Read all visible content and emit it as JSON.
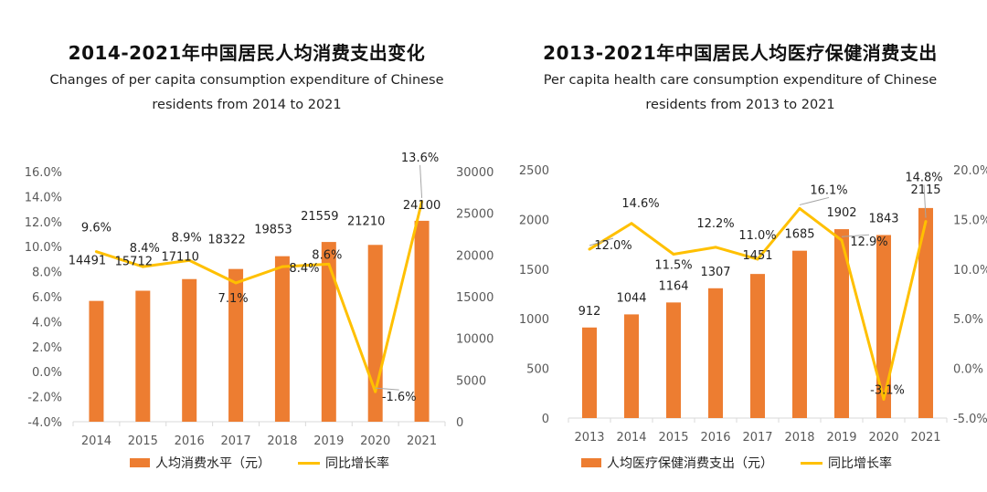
{
  "colors": {
    "bar": "#ED7D31",
    "line": "#FFC000",
    "axis": "#D9D9D9",
    "leader": "#A6A6A6",
    "tick": "#595959"
  },
  "charts": [
    {
      "title": "2014-2021年中国居民人均消费支出变化",
      "subtitle_lines": [
        "Changes of per capita consumption expenditure of Chinese",
        "residents from 2014 to 2021"
      ],
      "legend": {
        "bar": "人均消费水平（元）",
        "line": "同比增长率"
      }
    },
    {
      "title": "2013-2021年中国居民人均医疗保健消费支出",
      "subtitle_lines": [
        "Per capita health care consumption expenditure of Chinese",
        "residents from 2013 to 2021"
      ],
      "legend": {
        "bar": "人均医疗保健消费支出（元）",
        "line": "同比增长率"
      }
    }
  ],
  "chart_data": [
    {
      "type": "bar+line",
      "title": "2014-2021年中国居民人均消费支出变化",
      "categories": [
        "2014",
        "2015",
        "2016",
        "2017",
        "2018",
        "2019",
        "2020",
        "2021"
      ],
      "series": [
        {
          "name": "人均消费水平（元）",
          "type": "bar",
          "axis": "right",
          "values": [
            14491,
            15712,
            17110,
            18322,
            19853,
            21559,
            21210,
            24100
          ],
          "labels": [
            "14491",
            "15712",
            "17110",
            "18322",
            "19853",
            "21559",
            "21210",
            "24100"
          ]
        },
        {
          "name": "同比增长率",
          "type": "line",
          "axis": "left",
          "values": [
            9.6,
            8.4,
            8.9,
            7.1,
            8.4,
            8.6,
            -1.6,
            13.6
          ],
          "labels": [
            "9.6%",
            "8.4%",
            "8.9%",
            "7.1%",
            "8.4%",
            "8.6%",
            "-1.6%",
            "13.6%"
          ]
        }
      ],
      "left_axis": {
        "min": -4,
        "max": 16,
        "step": 2,
        "ticks": [
          "16.0%",
          "14.0%",
          "12.0%",
          "10.0%",
          "8.0%",
          "6.0%",
          "4.0%",
          "2.0%",
          "0.0%",
          "-2.0%",
          "-4.0%"
        ]
      },
      "right_axis": {
        "min": 0,
        "max": 30000,
        "step": 5000,
        "ticks": [
          "30000",
          "25000",
          "20000",
          "15000",
          "10000",
          "5000",
          "0"
        ]
      }
    },
    {
      "type": "bar+line",
      "title": "2013-2021年中国居民人均医疗保健消费支出",
      "categories": [
        "2013",
        "2014",
        "2015",
        "2016",
        "2017",
        "2018",
        "2019",
        "2020",
        "2021"
      ],
      "series": [
        {
          "name": "人均医疗保健消费支出（元）",
          "type": "bar",
          "axis": "left",
          "values": [
            912,
            1044,
            1164,
            1307,
            1451,
            1685,
            1902,
            1843,
            2115
          ],
          "labels": [
            "912",
            "1044",
            "1164",
            "1307",
            "1451",
            "1685",
            "1902",
            "1843",
            "2115"
          ]
        },
        {
          "name": "同比增长率",
          "type": "line",
          "axis": "right",
          "values": [
            12.0,
            14.6,
            11.5,
            12.2,
            11.0,
            16.1,
            12.9,
            -3.1,
            14.8
          ],
          "labels": [
            "12.0%",
            "14.6%",
            "11.5%",
            "12.2%",
            "11.0%",
            "16.1%",
            "12.9%",
            "-3.1%",
            "14.8%"
          ]
        }
      ],
      "left_axis": {
        "min": 0,
        "max": 2500,
        "step": 500,
        "ticks": [
          "2500",
          "2000",
          "1500",
          "1000",
          "500",
          "0"
        ]
      },
      "right_axis": {
        "min": -5,
        "max": 20,
        "step": 5,
        "ticks": [
          "20.0%",
          "15.0%",
          "10.0%",
          "5.0%",
          "0.0%",
          "-5.0%"
        ]
      }
    }
  ]
}
